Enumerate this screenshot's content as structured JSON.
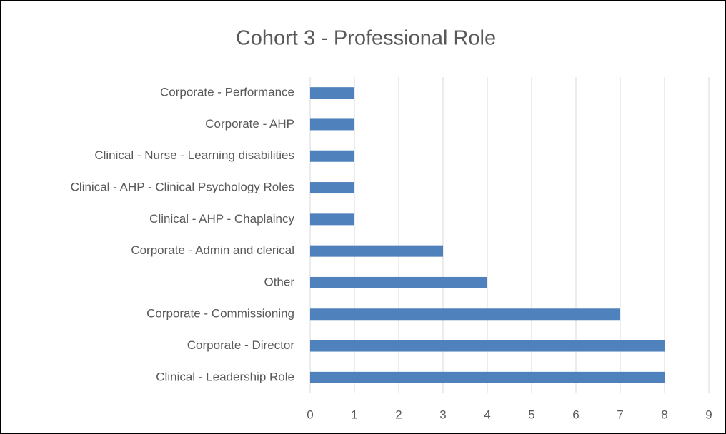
{
  "chart_data": {
    "type": "barh",
    "title": "Cohort 3 - Professional Role",
    "categories": [
      "Corporate - Performance",
      "Corporate - AHP",
      "Clinical - Nurse - Learning disabilities",
      "Clinical - AHP - Clinical Psychology Roles",
      "Clinical - AHP - Chaplaincy",
      "Corporate - Admin and clerical",
      "Other",
      "Corporate - Commissioning",
      "Corporate - Director",
      "Clinical - Leadership Role"
    ],
    "values": [
      1,
      1,
      1,
      1,
      1,
      3,
      4,
      7,
      8,
      8
    ],
    "color": "#4f81bd",
    "xlim": [
      0,
      9
    ],
    "xticks": [
      0,
      1,
      2,
      3,
      4,
      5,
      6,
      7,
      8,
      9
    ],
    "grid": true
  }
}
